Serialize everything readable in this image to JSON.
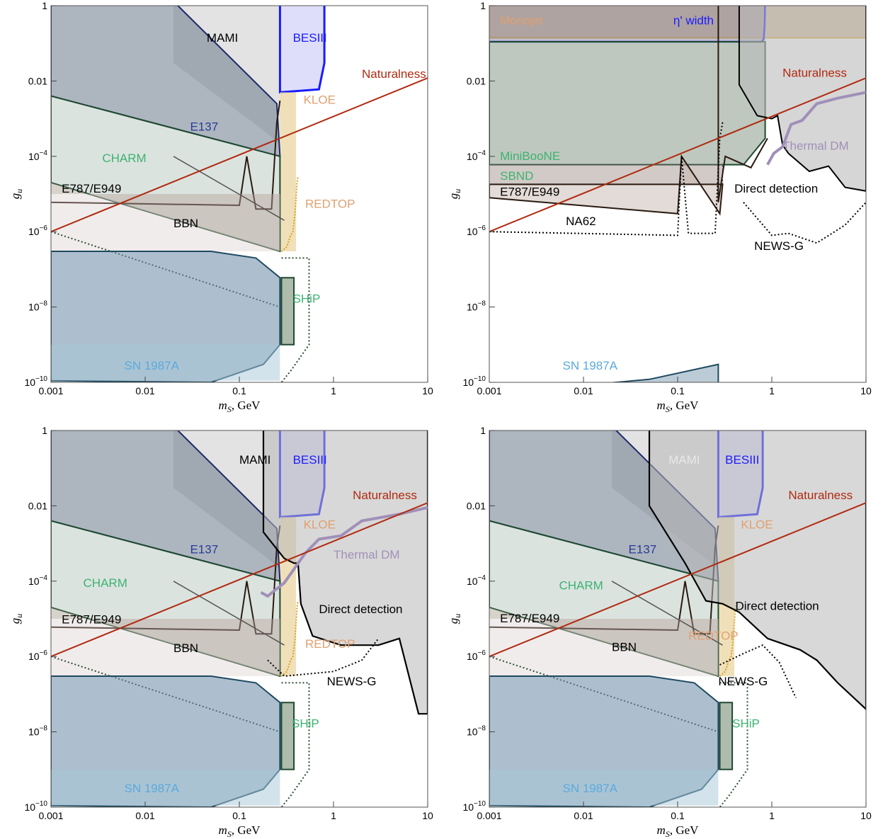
{
  "chart_data": [
    {
      "type": "area",
      "panel": "top-left",
      "xlabel": "m_S, GeV",
      "ylabel": "g_u",
      "xscale": "log",
      "yscale": "log",
      "xlim": [
        0.001,
        10
      ],
      "ylim": [
        1e-10,
        1
      ],
      "xticks": [
        "0.001",
        "0.01",
        "0.1",
        "1",
        "10"
      ],
      "yticks": [
        "10^-10",
        "10^-8",
        "10^-6",
        "10^-4",
        "0.01",
        "1"
      ],
      "regions": [
        "MAMI",
        "BESIII",
        "KLOE",
        "E137",
        "CHARM",
        "E787/E949",
        "BBN",
        "REDTOP",
        "SHiP",
        "SN 1987A"
      ],
      "lines": [
        "Naturalness"
      ],
      "labels": [
        {
          "text": "MAMI",
          "x": 0.045,
          "y": 0.11,
          "color": "#000000"
        },
        {
          "text": "BESIII",
          "x": 0.37,
          "y": 0.11,
          "color": "#1a1aff"
        },
        {
          "text": "Naturalness",
          "x": 2.0,
          "y": 0.012,
          "color": "#b02a10"
        },
        {
          "text": "KLOE",
          "x": 0.48,
          "y": 0.0025,
          "color": "#e0a070"
        },
        {
          "text": "E137",
          "x": 0.03,
          "y": 0.00048,
          "color": "#2a3a9a"
        },
        {
          "text": "CHARM",
          "x": 0.0035,
          "y": 7e-05,
          "color": "#3cb371"
        },
        {
          "text": "E787/E949",
          "x": 0.0013,
          "y": 1.1e-05,
          "color": "#000000"
        },
        {
          "text": "BBN",
          "x": 0.02,
          "y": 1.3e-06,
          "color": "#000000"
        },
        {
          "text": "REDTOP",
          "x": 0.5,
          "y": 4.3e-06,
          "color": "#e0a070"
        },
        {
          "text": "SHiP",
          "x": 0.37,
          "y": 1.3e-08,
          "color": "#3cb371"
        },
        {
          "text": "SN 1987A",
          "x": 0.006,
          "y": 2.2e-10,
          "color": "#5aaadd"
        }
      ]
    },
    {
      "type": "area",
      "panel": "top-right",
      "xlabel": "m_S, GeV",
      "ylabel": "g_u",
      "xscale": "log",
      "yscale": "log",
      "xlim": [
        0.001,
        10
      ],
      "ylim": [
        1e-10,
        1
      ],
      "xticks": [
        "0.001",
        "0.01",
        "0.1",
        "1",
        "10"
      ],
      "yticks": [
        "10^-10",
        "10^-8",
        "10^-6",
        "10^-4",
        "0.01",
        "1"
      ],
      "regions": [
        "Monojet",
        "η' width",
        "MiniBooNE",
        "SBND",
        "E787/E949",
        "NA62",
        "Direct detection",
        "NEWS-G",
        "SN 1987A"
      ],
      "lines": [
        "Naturalness",
        "Thermal DM"
      ],
      "labels": [
        {
          "text": "Monojet",
          "x": 0.0013,
          "y": 0.32,
          "color": "#e0a070"
        },
        {
          "text": "η' width",
          "x": 0.09,
          "y": 0.32,
          "color": "#1a1aff"
        },
        {
          "text": "Naturalness",
          "x": 1.3,
          "y": 0.013,
          "color": "#b02a10"
        },
        {
          "text": "Thermal DM",
          "x": 1.3,
          "y": 0.00015,
          "color": "#a090b8"
        },
        {
          "text": "MiniBooNE",
          "x": 0.0013,
          "y": 8e-05,
          "color": "#3cb371"
        },
        {
          "text": "SBND",
          "x": 0.0013,
          "y": 2.4e-05,
          "color": "#3cb371"
        },
        {
          "text": "E787/E949",
          "x": 0.0013,
          "y": 9e-06,
          "color": "#000000"
        },
        {
          "text": "Direct detection",
          "x": 0.4,
          "y": 1.1e-05,
          "color": "#000000"
        },
        {
          "text": "NA62",
          "x": 0.0065,
          "y": 1.5e-06,
          "color": "#000000"
        },
        {
          "text": "NEWS-G",
          "x": 0.65,
          "y": 3.3e-07,
          "color": "#000000"
        },
        {
          "text": "SN 1987A",
          "x": 0.006,
          "y": 2.2e-10,
          "color": "#5aaadd"
        }
      ]
    },
    {
      "type": "area",
      "panel": "bottom-left",
      "xlabel": "m_S, GeV",
      "ylabel": "g_u",
      "xscale": "log",
      "yscale": "log",
      "xlim": [
        0.001,
        10
      ],
      "ylim": [
        1e-10,
        1
      ],
      "xticks": [
        "0.001",
        "0.01",
        "0.1",
        "1",
        "10"
      ],
      "yticks": [
        "10^-10",
        "10^-8",
        "10^-6",
        "10^-4",
        "0.01",
        "1"
      ],
      "regions": [
        "MAMI",
        "BESIII",
        "KLOE",
        "E137",
        "CHARM",
        "E787/E949",
        "BBN",
        "REDTOP",
        "Direct detection",
        "NEWS-G",
        "SHiP",
        "SN 1987A"
      ],
      "lines": [
        "Naturalness",
        "Thermal DM"
      ],
      "labels": [
        {
          "text": "MAMI",
          "x": 0.1,
          "y": 0.13,
          "color": "#000000"
        },
        {
          "text": "BESIII",
          "x": 0.37,
          "y": 0.13,
          "color": "#1a1aff"
        },
        {
          "text": "Naturalness",
          "x": 1.6,
          "y": 0.015,
          "color": "#b02a10"
        },
        {
          "text": "KLOE",
          "x": 0.48,
          "y": 0.0025,
          "color": "#e0a070"
        },
        {
          "text": "Thermal DM",
          "x": 1.0,
          "y": 0.0004,
          "color": "#a090b8"
        },
        {
          "text": "E137",
          "x": 0.03,
          "y": 0.00055,
          "color": "#2a3a9a"
        },
        {
          "text": "CHARM",
          "x": 0.0022,
          "y": 7e-05,
          "color": "#3cb371"
        },
        {
          "text": "Direct detection",
          "x": 0.7,
          "y": 1.4e-05,
          "color": "#000000"
        },
        {
          "text": "E787/E949",
          "x": 0.0013,
          "y": 7.5e-06,
          "color": "#000000"
        },
        {
          "text": "BBN",
          "x": 0.02,
          "y": 1.3e-06,
          "color": "#000000"
        },
        {
          "text": "REDTOP",
          "x": 0.5,
          "y": 1.7e-06,
          "color": "#e0a070"
        },
        {
          "text": "NEWS-G",
          "x": 0.85,
          "y": 1.7e-07,
          "color": "#000000"
        },
        {
          "text": "SHiP",
          "x": 0.36,
          "y": 1.3e-08,
          "color": "#3cb371"
        },
        {
          "text": "SN 1987A",
          "x": 0.006,
          "y": 2.5e-10,
          "color": "#5aaadd"
        }
      ]
    },
    {
      "type": "area",
      "panel": "bottom-right",
      "xlabel": "m_S, GeV",
      "ylabel": "g_u",
      "xscale": "log",
      "yscale": "log",
      "xlim": [
        0.001,
        10
      ],
      "ylim": [
        1e-10,
        1
      ],
      "xticks": [
        "0.001",
        "0.01",
        "0.1",
        "1",
        "10"
      ],
      "yticks": [
        "10^-10",
        "10^-8",
        "10^-6",
        "10^-4",
        "0.01",
        "1"
      ],
      "regions": [
        "MAMI",
        "BESIII",
        "KLOE",
        "E137",
        "CHARM",
        "E787/E949",
        "BBN",
        "REDTOP",
        "Direct detection",
        "NEWS-G",
        "SHiP",
        "SN 1987A"
      ],
      "lines": [
        "Naturalness"
      ],
      "labels": [
        {
          "text": "MAMI",
          "x": 0.08,
          "y": 0.13,
          "color": "#e8e8e8"
        },
        {
          "text": "BESIII",
          "x": 0.32,
          "y": 0.13,
          "color": "#1a1aff"
        },
        {
          "text": "Naturalness",
          "x": 1.5,
          "y": 0.015,
          "color": "#b02a10"
        },
        {
          "text": "KLOE",
          "x": 0.47,
          "y": 0.0025,
          "color": "#e0a070"
        },
        {
          "text": "E137",
          "x": 0.03,
          "y": 0.00055,
          "color": "#2a3a9a"
        },
        {
          "text": "CHARM",
          "x": 0.0055,
          "y": 6e-05,
          "color": "#3cb371"
        },
        {
          "text": "Direct detection",
          "x": 0.41,
          "y": 1.7e-05,
          "color": "#000000"
        },
        {
          "text": "E787/E949",
          "x": 0.0013,
          "y": 8e-06,
          "color": "#000000"
        },
        {
          "text": "BBN",
          "x": 0.02,
          "y": 1.4e-06,
          "color": "#000000"
        },
        {
          "text": "REDTOP",
          "x": 0.13,
          "y": 2.8e-06,
          "color": "#e0a070"
        },
        {
          "text": "NEWS-G",
          "x": 0.27,
          "y": 1.7e-07,
          "color": "#000000"
        },
        {
          "text": "SHiP",
          "x": 0.38,
          "y": 1.3e-08,
          "color": "#3cb371"
        },
        {
          "text": "SN 1987A",
          "x": 0.006,
          "y": 2.5e-10,
          "color": "#5aaadd"
        }
      ]
    }
  ]
}
